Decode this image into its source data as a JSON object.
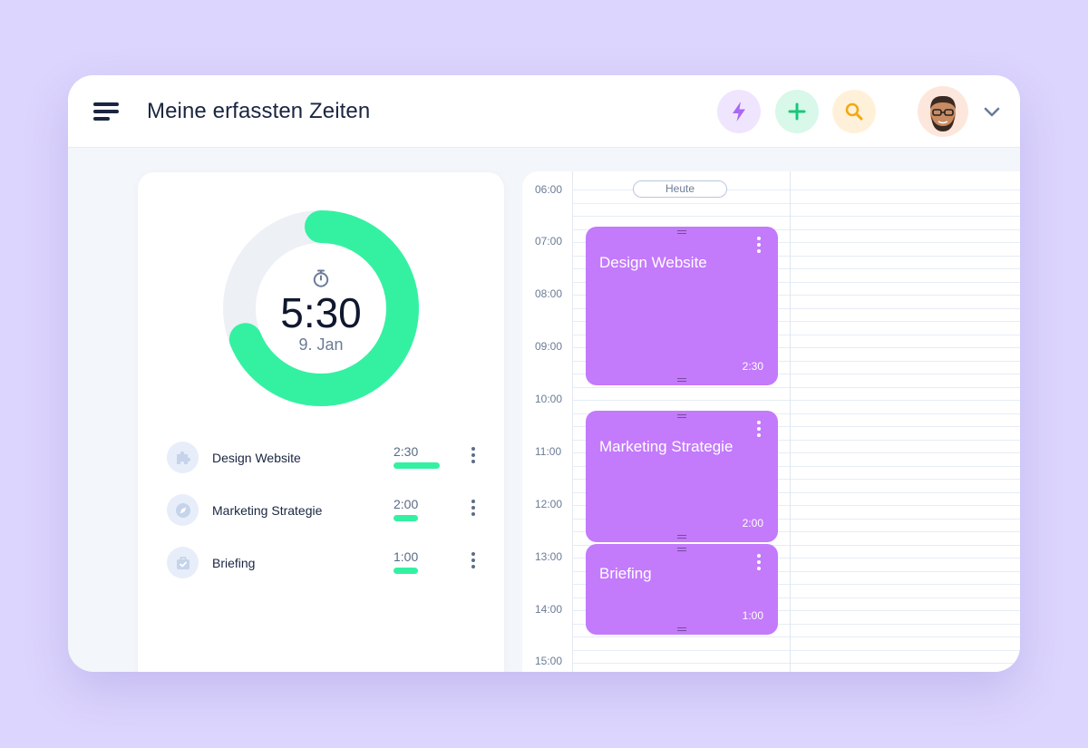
{
  "header": {
    "title": "Meine erfassten Zeiten",
    "icons": {
      "menu": "menu-icon",
      "bolt": "bolt-icon",
      "add": "plus-icon",
      "search": "search-icon",
      "chevron": "chevron-down-icon"
    }
  },
  "summary": {
    "total_time": "5:30",
    "date": "9. Jan",
    "progress_fraction": 0.6875,
    "colors": {
      "progress": "#34f1a2",
      "track": "#edf0f5"
    }
  },
  "tasks": [
    {
      "name": "Design Website",
      "time": "2:30",
      "icon": "puzzle-icon",
      "bar_fraction": 1.0
    },
    {
      "name": "Marketing Strategie",
      "time": "2:00",
      "icon": "compass-icon",
      "bar_fraction": 0.53
    },
    {
      "name": "Briefing",
      "time": "1:00",
      "icon": "briefcase-icon",
      "bar_fraction": 0.53
    }
  ],
  "calendar": {
    "today_label": "Heute",
    "hours": [
      "06:00",
      "07:00",
      "08:00",
      "09:00",
      "10:00",
      "11:00",
      "12:00",
      "13:00",
      "14:00",
      "15:00"
    ],
    "events": [
      {
        "title": "Design Website",
        "duration": "2:30"
      },
      {
        "title": "Marketing Strategie",
        "duration": "2:00"
      },
      {
        "title": "Briefing",
        "duration": "1:00"
      }
    ],
    "event_color": "#c37afb"
  }
}
